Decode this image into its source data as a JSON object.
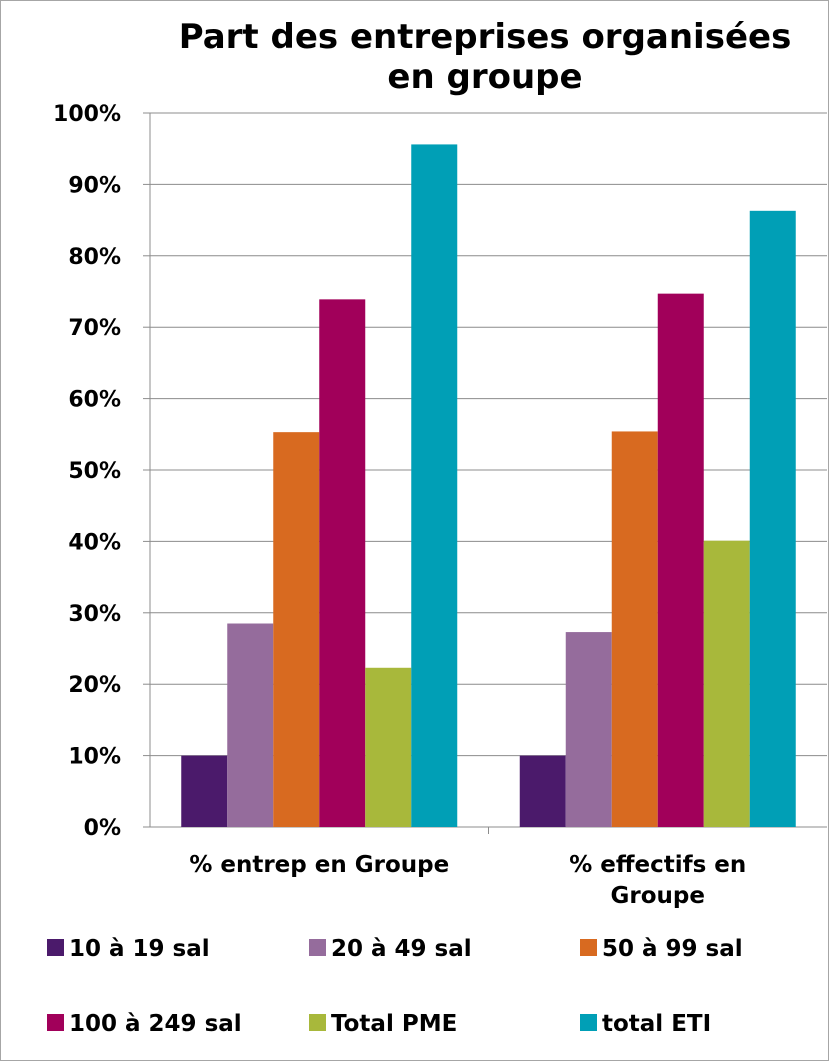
{
  "chart_data": {
    "type": "bar",
    "title_lines": [
      "Part des entreprises organisées",
      "en groupe"
    ],
    "categories": [
      [
        "% entrep en Groupe"
      ],
      [
        "% effectifs en",
        "Groupe"
      ]
    ],
    "y_ticks": [
      "0%",
      "10%",
      "20%",
      "30%",
      "40%",
      "50%",
      "60%",
      "70%",
      "80%",
      "90%",
      "100%"
    ],
    "ylim": [
      0,
      100
    ],
    "grid": true,
    "legend_position": "bottom",
    "series": [
      {
        "name": "10 à 19 sal",
        "color": "#4b1a6b",
        "values": [
          10,
          10
        ]
      },
      {
        "name": "20 à 49 sal",
        "color": "#956c9c",
        "values": [
          28.5,
          27.3
        ]
      },
      {
        "name": "50 à 99 sal",
        "color": "#d86a20",
        "values": [
          55.3,
          55.4
        ]
      },
      {
        "name": "100 à 249 sal",
        "color": "#a1005a",
        "values": [
          73.9,
          74.7
        ]
      },
      {
        "name": "Total PME",
        "color": "#a8b83b",
        "values": [
          22.3,
          40.1
        ]
      },
      {
        "name": "total ETI",
        "color": "#009fb6",
        "values": [
          95.6,
          86.3
        ]
      }
    ]
  }
}
